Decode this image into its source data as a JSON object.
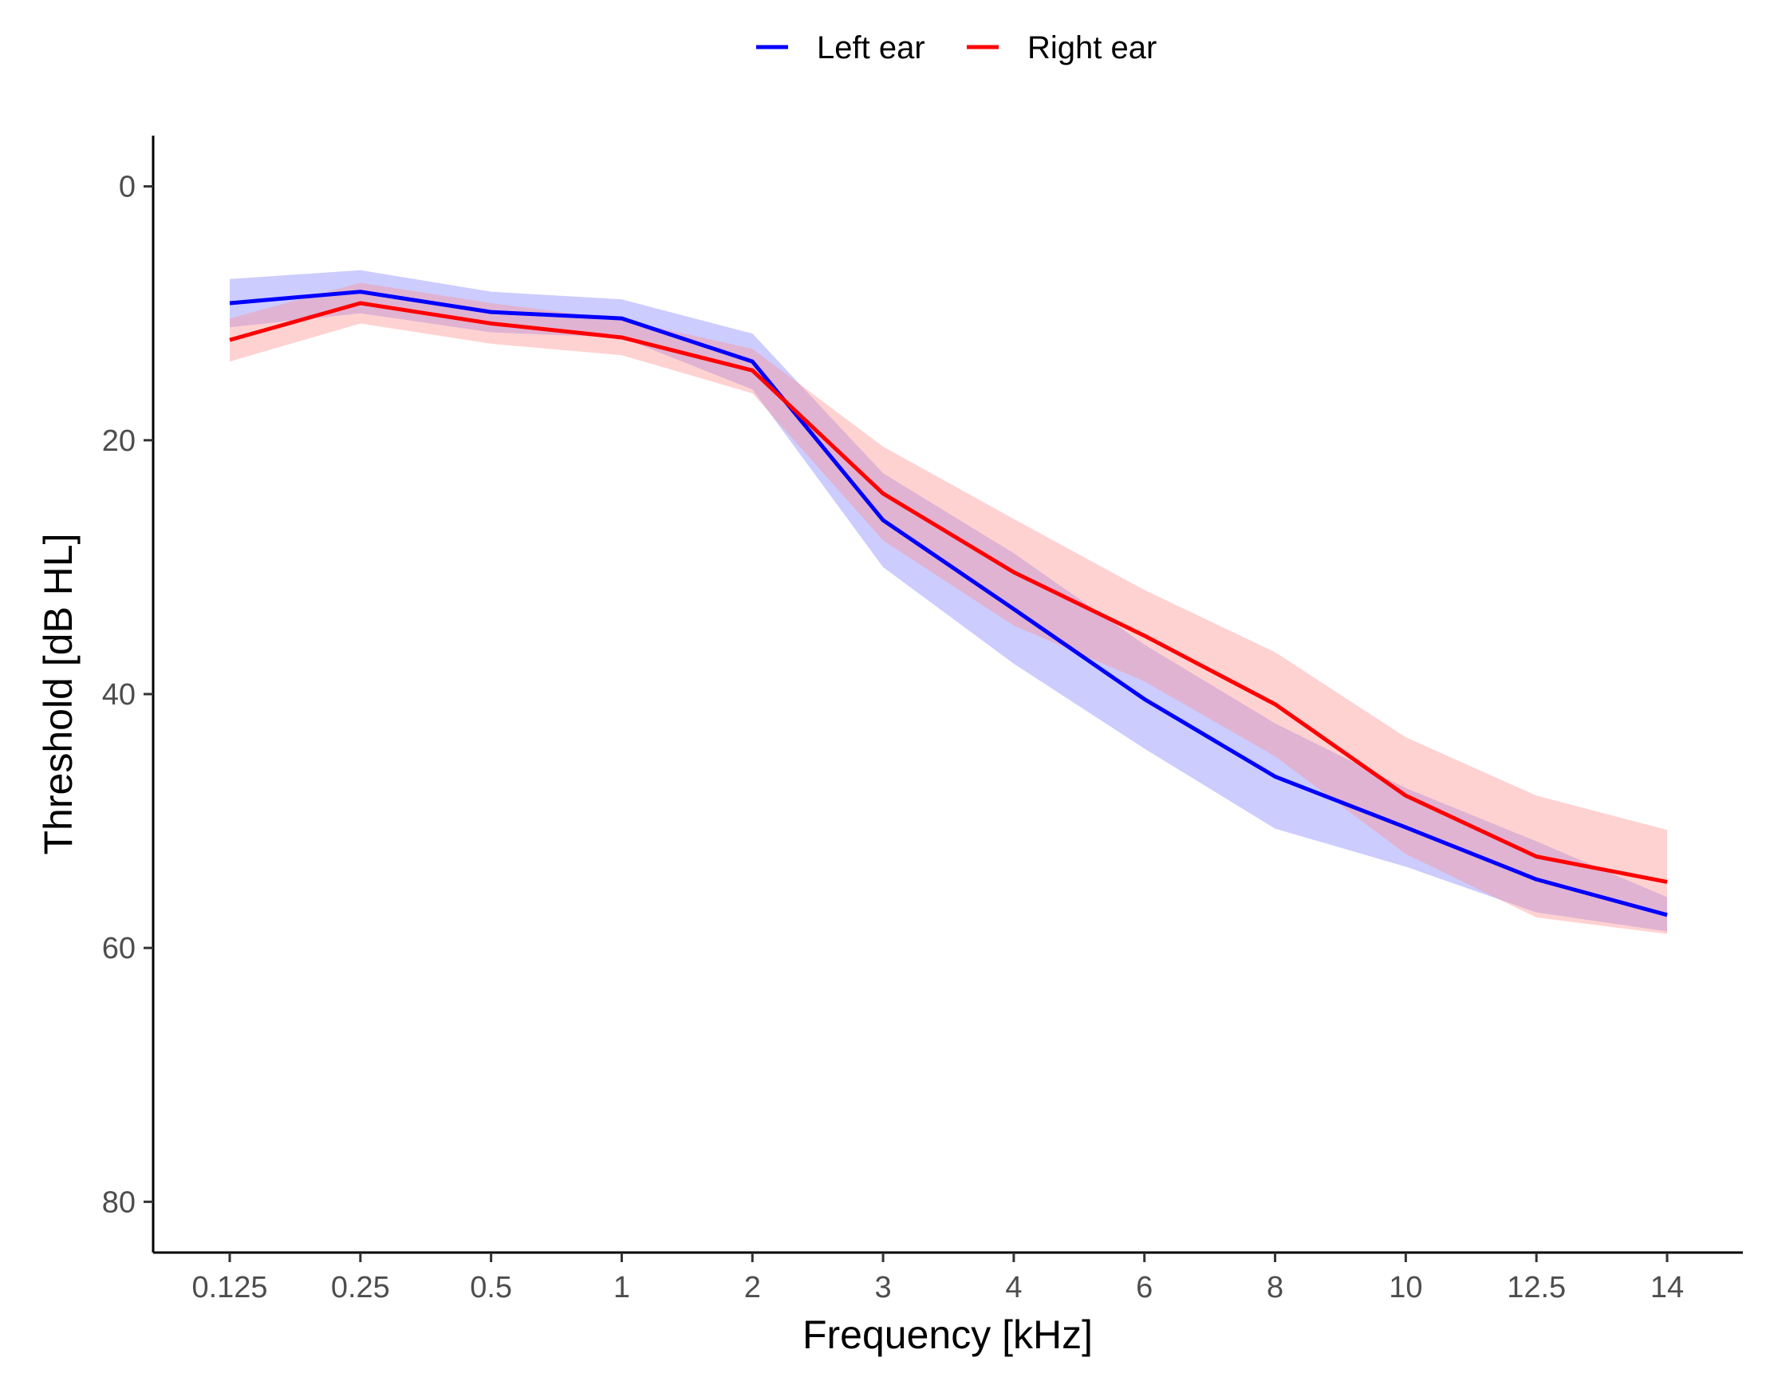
{
  "chart_data": {
    "type": "line",
    "title": "",
    "xlabel": "Frequency [kHz]",
    "ylabel": "Threshold [dB HL]",
    "categories": [
      "0.125",
      "0.25",
      "0.5",
      "1",
      "2",
      "3",
      "4",
      "6",
      "8",
      "10",
      "12.5",
      "14"
    ],
    "y_ticks": [
      "0",
      "20",
      "40",
      "60",
      "80"
    ],
    "ylim": [
      -4,
      84
    ],
    "y_reversed": true,
    "grid": false,
    "legend_position": "top",
    "series": [
      {
        "name": "Left ear",
        "color": "#0000ff",
        "band_color": "#7f7fff",
        "values": [
          9.2,
          8.3,
          9.9,
          10.4,
          13.8,
          26.3,
          33.3,
          40.4,
          46.5,
          50.5,
          54.6,
          57.4
        ],
        "lower": [
          7.3,
          6.6,
          8.3,
          8.9,
          11.6,
          22.6,
          28.9,
          36.1,
          42.3,
          47.4,
          51.6,
          56.0
        ],
        "upper": [
          11.1,
          10.0,
          11.5,
          11.9,
          16.0,
          30.0,
          37.6,
          44.3,
          50.6,
          53.6,
          57.2,
          58.7
        ]
      },
      {
        "name": "Right ear",
        "color": "#ff0000",
        "band_color": "#ff8f8f",
        "values": [
          12.1,
          9.2,
          10.8,
          11.9,
          14.5,
          24.2,
          30.4,
          35.4,
          40.8,
          48.0,
          52.8,
          54.8
        ],
        "lower": [
          10.4,
          7.6,
          9.2,
          10.5,
          12.8,
          20.5,
          26.2,
          31.8,
          36.7,
          43.4,
          48.0,
          50.7
        ],
        "upper": [
          13.8,
          10.8,
          12.4,
          13.3,
          16.3,
          27.9,
          34.6,
          39.0,
          44.9,
          52.6,
          57.6,
          58.9
        ]
      }
    ]
  }
}
